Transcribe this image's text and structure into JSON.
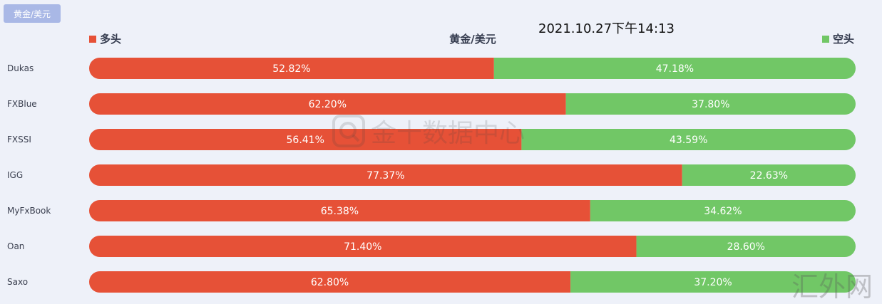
{
  "header": {
    "tag_label": "黄金/美元",
    "timestamp": "2021.10.27下午14:13"
  },
  "watermark": {
    "text": "金十数据中心",
    "corner_text": "汇外网"
  },
  "colors": {
    "long": "#e65137",
    "short": "#71c766",
    "background": "#eef1f9",
    "tag": "#a9b8e6"
  },
  "chart_data": {
    "type": "bar",
    "orientation": "horizontal",
    "stacked": true,
    "normalized": "percent",
    "title": "黄金/美元",
    "legend": {
      "placement": "top",
      "entries": [
        "多头",
        "空头"
      ]
    },
    "categories": [
      "Dukas",
      "FXBlue",
      "FXSSI",
      "IGG",
      "MyFxBook",
      "Oan",
      "Saxo"
    ],
    "series": [
      {
        "name": "多头",
        "color": "#e65137",
        "values": [
          52.82,
          62.2,
          56.41,
          77.37,
          65.38,
          71.4,
          62.8
        ]
      },
      {
        "name": "空头",
        "color": "#71c766",
        "values": [
          47.18,
          37.8,
          43.59,
          22.63,
          34.62,
          28.6,
          37.2
        ]
      }
    ],
    "value_labels": [
      [
        "52.82%",
        "62.20%",
        "56.41%",
        "77.37%",
        "65.38%",
        "71.40%",
        "62.80%"
      ],
      [
        "47.18%",
        "37.80%",
        "43.59%",
        "22.63%",
        "34.62%",
        "28.60%",
        "37.20%"
      ]
    ],
    "xlim": [
      0,
      100
    ],
    "grid": false
  }
}
